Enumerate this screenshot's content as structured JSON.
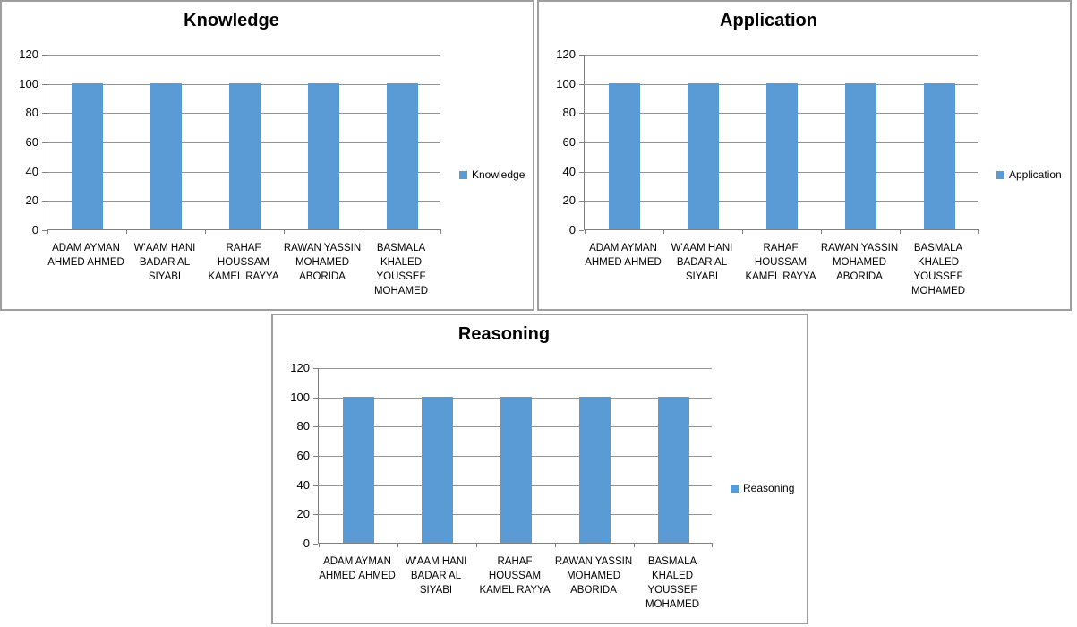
{
  "colors": {
    "bar": "#5B9BD5",
    "gridline": "#939393",
    "axis": "#7F7F7F",
    "panel_border": "#9E9E9E",
    "text": "#000000",
    "background": "#FFFFFF"
  },
  "chart_data": [
    {
      "type": "bar",
      "title": "Knowledge",
      "legend_position": "right",
      "legend": [
        "Knowledge"
      ],
      "series": [
        {
          "name": "Knowledge",
          "values": [
            100,
            100,
            100,
            100,
            100
          ]
        }
      ],
      "categories": [
        "ADAM AYMAN AHMED AHMED",
        "W'AAM HANI BADAR AL SIYABI",
        "RAHAF HOUSSAM KAMEL RAYYA",
        "RAWAN YASSIN MOHAMED ABORIDA",
        "BASMALA KHALED YOUSSEF MOHAMED"
      ],
      "category_lines": [
        [
          "ADAM AYMAN",
          "AHMED AHMED"
        ],
        [
          "W'AAM HANI",
          "BADAR AL",
          "SIYABI"
        ],
        [
          "RAHAF",
          "HOUSSAM",
          "KAMEL RAYYA"
        ],
        [
          "RAWAN YASSIN",
          "MOHAMED",
          "ABORIDA"
        ],
        [
          "BASMALA",
          "KHALED",
          "YOUSSEF",
          "MOHAMED"
        ]
      ],
      "xlabel": "",
      "ylabel": "",
      "ylim": [
        0,
        120
      ],
      "y_ticks": [
        0,
        20,
        40,
        60,
        80,
        100,
        120
      ],
      "grid": true,
      "color": "#5B9BD5"
    },
    {
      "type": "bar",
      "title": "Application",
      "legend_position": "right",
      "legend": [
        "Application"
      ],
      "series": [
        {
          "name": "Application",
          "values": [
            100,
            100,
            100,
            100,
            100
          ]
        }
      ],
      "categories": [
        "ADAM AYMAN AHMED AHMED",
        "W'AAM HANI BADAR AL SIYABI",
        "RAHAF HOUSSAM KAMEL RAYYA",
        "RAWAN YASSIN MOHAMED ABORIDA",
        "BASMALA KHALED YOUSSEF MOHAMED"
      ],
      "category_lines": [
        [
          "ADAM AYMAN",
          "AHMED AHMED"
        ],
        [
          "W'AAM HANI",
          "BADAR AL",
          "SIYABI"
        ],
        [
          "RAHAF",
          "HOUSSAM",
          "KAMEL RAYYA"
        ],
        [
          "RAWAN YASSIN",
          "MOHAMED",
          "ABORIDA"
        ],
        [
          "BASMALA",
          "KHALED",
          "YOUSSEF",
          "MOHAMED"
        ]
      ],
      "xlabel": "",
      "ylabel": "",
      "ylim": [
        0,
        120
      ],
      "y_ticks": [
        0,
        20,
        40,
        60,
        80,
        100,
        120
      ],
      "grid": true,
      "color": "#5B9BD5"
    },
    {
      "type": "bar",
      "title": "Reasoning",
      "legend_position": "right",
      "legend": [
        "Reasoning"
      ],
      "series": [
        {
          "name": "Reasoning",
          "values": [
            100,
            100,
            100,
            100,
            100
          ]
        }
      ],
      "categories": [
        "ADAM AYMAN AHMED AHMED",
        "W'AAM HANI BADAR AL SIYABI",
        "RAHAF HOUSSAM KAMEL RAYYA",
        "RAWAN YASSIN MOHAMED ABORIDA",
        "BASMALA KHALED YOUSSEF MOHAMED"
      ],
      "category_lines": [
        [
          "ADAM AYMAN",
          "AHMED AHMED"
        ],
        [
          "W'AAM HANI",
          "BADAR AL",
          "SIYABI"
        ],
        [
          "RAHAF",
          "HOUSSAM",
          "KAMEL RAYYA"
        ],
        [
          "RAWAN YASSIN",
          "MOHAMED",
          "ABORIDA"
        ],
        [
          "BASMALA",
          "KHALED",
          "YOUSSEF",
          "MOHAMED"
        ]
      ],
      "xlabel": "",
      "ylabel": "",
      "ylim": [
        0,
        120
      ],
      "y_ticks": [
        0,
        20,
        40,
        60,
        80,
        100,
        120
      ],
      "grid": true,
      "color": "#5B9BD5"
    }
  ]
}
